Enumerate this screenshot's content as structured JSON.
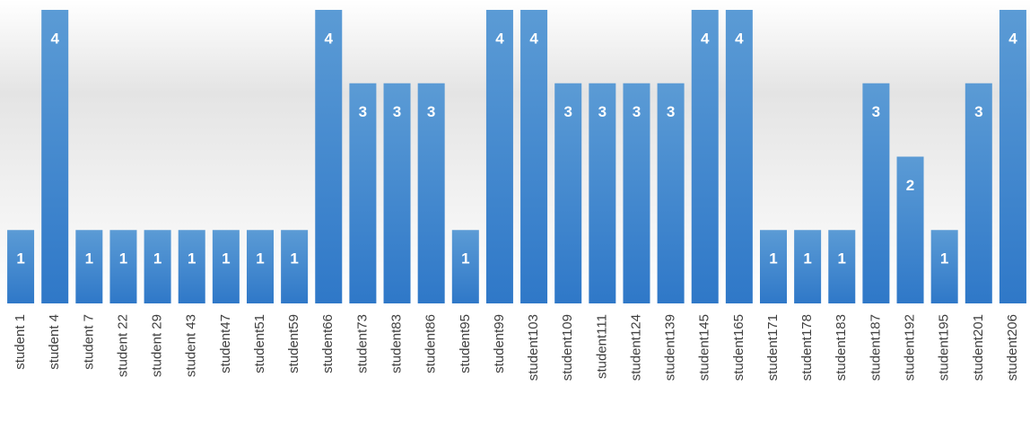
{
  "chart_data": {
    "type": "bar",
    "categories": [
      "student 1",
      "student 4",
      "student 7",
      "student 22",
      "student 29",
      "student 43",
      "student47",
      "student51",
      "student59",
      "student66",
      "student73",
      "student83",
      "student86",
      "student95",
      "student99",
      "student103",
      "student109",
      "student111",
      "student124",
      "student139",
      "student145",
      "student165",
      "student171",
      "student178",
      "student183",
      "student187",
      "student192",
      "student195",
      "student201",
      "student206"
    ],
    "values": [
      1,
      4,
      1,
      1,
      1,
      1,
      1,
      1,
      1,
      4,
      3,
      3,
      3,
      1,
      4,
      4,
      3,
      3,
      3,
      3,
      4,
      4,
      1,
      1,
      1,
      3,
      2,
      1,
      3,
      4
    ],
    "color": "#3f86d0",
    "ylim": [
      0,
      4
    ]
  }
}
